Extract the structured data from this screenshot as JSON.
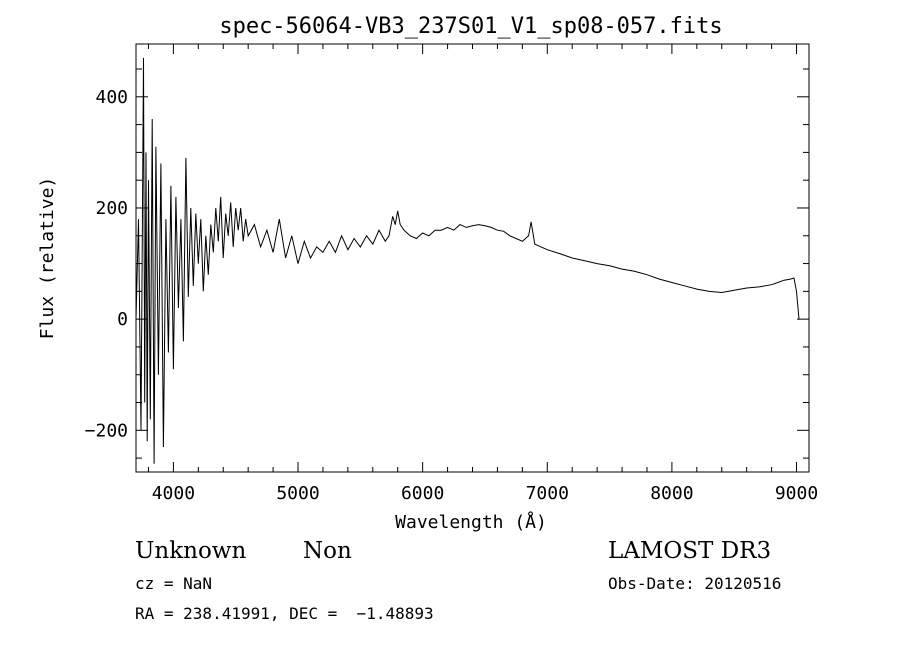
{
  "chart_data": {
    "type": "line",
    "title": "spec-56064-VB3_237S01_V1_sp08-057.fits",
    "xlabel": "Wavelength (Å)",
    "ylabel": "Flux (relative)",
    "xlim": [
      3700,
      9100
    ],
    "ylim": [
      -275,
      495
    ],
    "x_ticks": [
      4000,
      5000,
      6000,
      7000,
      8000,
      9000
    ],
    "y_ticks": [
      -200,
      0,
      200,
      400
    ],
    "x_tick_labels": [
      "4000",
      "5000",
      "6000",
      "7000",
      "8000",
      "9000"
    ],
    "y_tick_labels": [
      "−200",
      "0",
      "200",
      "400"
    ],
    "grid": false,
    "color": "#000000",
    "series": [
      {
        "x": [
          3700,
          3720,
          3740,
          3760,
          3770,
          3780,
          3790,
          3800,
          3815,
          3830,
          3845,
          3860,
          3880,
          3900,
          3920,
          3940,
          3960,
          3980,
          4000,
          4020,
          4040,
          4060,
          4080,
          4100,
          4120,
          4140,
          4160,
          4180,
          4200,
          4220,
          4240,
          4260,
          4280,
          4300,
          4320,
          4340,
          4360,
          4380,
          4400,
          4420,
          4440,
          4460,
          4480,
          4500,
          4520,
          4540,
          4560,
          4580,
          4600,
          4650,
          4700,
          4750,
          4800,
          4850,
          4900,
          4950,
          5000,
          5050,
          5100,
          5150,
          5200,
          5250,
          5300,
          5350,
          5400,
          5450,
          5500,
          5550,
          5600,
          5650,
          5700,
          5730,
          5760,
          5780,
          5800,
          5820,
          5850,
          5900,
          5950,
          6000,
          6050,
          6100,
          6150,
          6200,
          6250,
          6300,
          6350,
          6400,
          6450,
          6500,
          6550,
          6600,
          6650,
          6700,
          6750,
          6800,
          6850,
          6870,
          6900,
          6950,
          7000,
          7100,
          7200,
          7300,
          7400,
          7500,
          7600,
          7700,
          7800,
          7900,
          8000,
          8100,
          8200,
          8300,
          8400,
          8500,
          8600,
          8700,
          8800,
          8850,
          8900,
          8950,
          8980,
          9000,
          9020
        ],
        "y": [
          0,
          180,
          -200,
          470,
          -150,
          300,
          -220,
          250,
          -180,
          360,
          -260,
          310,
          -100,
          280,
          -230,
          180,
          -60,
          240,
          -90,
          220,
          20,
          180,
          -40,
          290,
          40,
          200,
          60,
          190,
          100,
          180,
          50,
          150,
          80,
          170,
          120,
          200,
          140,
          220,
          110,
          190,
          150,
          210,
          130,
          200,
          160,
          200,
          140,
          180,
          150,
          170,
          130,
          160,
          120,
          180,
          110,
          150,
          100,
          140,
          110,
          130,
          120,
          140,
          120,
          150,
          125,
          145,
          130,
          150,
          135,
          160,
          140,
          150,
          185,
          170,
          195,
          170,
          160,
          150,
          145,
          155,
          150,
          160,
          160,
          165,
          160,
          170,
          165,
          168,
          170,
          168,
          165,
          160,
          158,
          150,
          145,
          140,
          150,
          175,
          135,
          130,
          125,
          118,
          110,
          105,
          100,
          96,
          90,
          86,
          80,
          72,
          66,
          60,
          54,
          50,
          48,
          52,
          56,
          58,
          62,
          66,
          70,
          72,
          74,
          50,
          0
        ]
      }
    ]
  },
  "info": {
    "object_class": "Unknown",
    "subclass": "Non",
    "survey": "LAMOST DR3",
    "cz": "cz = NaN",
    "obs_date": "Obs-Date: 20120516",
    "coords": "RA = 238.41991, DEC =  −1.48893"
  }
}
